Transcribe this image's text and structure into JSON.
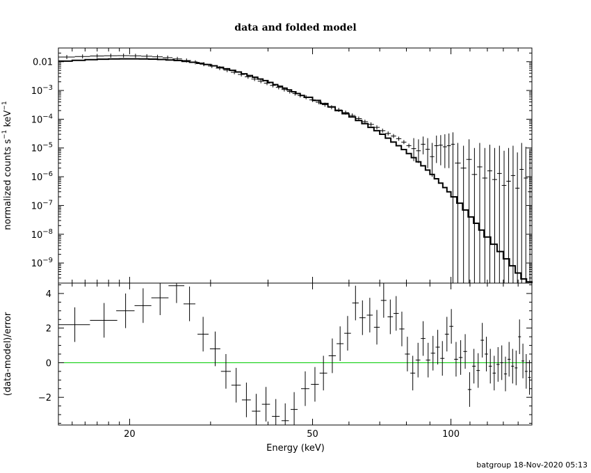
{
  "chart_data": [
    {
      "type": "line",
      "title": "data and folded model",
      "ylabel": "normalized counts s^-1 keV^-1",
      "xscale": "log",
      "yscale": "log",
      "xlim": [
        14,
        150
      ],
      "ylim": [
        2e-10,
        0.03
      ],
      "yticks": [
        {
          "value": 0.01,
          "label": "0.01"
        },
        {
          "value": 0.001,
          "base": "10",
          "exp": "−3"
        },
        {
          "value": 0.0001,
          "base": "10",
          "exp": "−4"
        },
        {
          "value": 1e-05,
          "base": "10",
          "exp": "−5"
        },
        {
          "value": 1e-06,
          "base": "10",
          "exp": "−6"
        },
        {
          "value": 1e-07,
          "base": "10",
          "exp": "−7"
        },
        {
          "value": 1e-08,
          "base": "10",
          "exp": "−8"
        },
        {
          "value": 1e-09,
          "base": "10",
          "exp": "−9"
        }
      ],
      "model_steps": [
        [
          14,
          0.0105
        ],
        [
          15,
          0.0112
        ],
        [
          16,
          0.0118
        ],
        [
          17,
          0.0122
        ],
        [
          18,
          0.0125
        ],
        [
          19,
          0.0126
        ],
        [
          20,
          0.0126
        ],
        [
          21,
          0.0125
        ],
        [
          22,
          0.0123
        ],
        [
          23,
          0.012
        ],
        [
          24,
          0.0115
        ],
        [
          25,
          0.011
        ],
        [
          26,
          0.0103
        ],
        [
          27,
          0.0096
        ],
        [
          28,
          0.0088
        ],
        [
          29,
          0.008
        ],
        [
          30,
          0.0072
        ],
        [
          31,
          0.0064
        ],
        [
          32,
          0.0057
        ],
        [
          33,
          0.005
        ],
        [
          34,
          0.0044
        ],
        [
          35,
          0.0038
        ],
        [
          36,
          0.0033
        ],
        [
          37,
          0.0029
        ],
        [
          38,
          0.0025
        ],
        [
          39,
          0.0022
        ],
        [
          40,
          0.0019
        ],
        [
          41,
          0.0016
        ],
        [
          42,
          0.0014
        ],
        [
          43,
          0.0012
        ],
        [
          44,
          0.00105
        ],
        [
          45,
          0.0009
        ],
        [
          46,
          0.00078
        ],
        [
          47,
          0.00067
        ],
        [
          48,
          0.00058
        ],
        [
          50,
          0.00045
        ],
        [
          52,
          0.00035
        ],
        [
          54,
          0.00027
        ],
        [
          56,
          0.0002
        ],
        [
          58,
          0.000155
        ],
        [
          60,
          0.00012
        ],
        [
          62,
          9e-05
        ],
        [
          64,
          7e-05
        ],
        [
          66,
          5.2e-05
        ],
        [
          68,
          4e-05
        ],
        [
          70,
          3e-05
        ],
        [
          72,
          2.2e-05
        ],
        [
          74,
          1.6e-05
        ],
        [
          76,
          1.2e-05
        ],
        [
          78,
          8.8e-06
        ],
        [
          80,
          6.4e-06
        ],
        [
          82,
          4.6e-06
        ],
        [
          84,
          3.3e-06
        ],
        [
          86,
          2.4e-06
        ],
        [
          88,
          1.7e-06
        ],
        [
          90,
          1.2e-06
        ],
        [
          92,
          8.5e-07
        ],
        [
          94,
          6e-07
        ],
        [
          96,
          4.2e-07
        ],
        [
          98,
          3e-07
        ],
        [
          100,
          2e-07
        ],
        [
          103,
          1.2e-07
        ],
        [
          106,
          7e-08
        ],
        [
          109,
          4e-08
        ],
        [
          112,
          2.4e-08
        ],
        [
          115,
          1.4e-08
        ],
        [
          118,
          8e-09
        ],
        [
          122,
          4.5e-09
        ],
        [
          126,
          2.5e-09
        ],
        [
          130,
          1.4e-09
        ],
        [
          134,
          8e-10
        ],
        [
          138,
          4.5e-10
        ],
        [
          142,
          2.8e-10
        ],
        [
          146,
          2.2e-10
        ],
        [
          150,
          2e-10
        ]
      ],
      "points": [
        {
          "x": 14.6,
          "y": 0.0145,
          "xerr": 0.6
        },
        {
          "x": 15.8,
          "y": 0.0152,
          "xerr": 0.6
        },
        {
          "x": 17.0,
          "y": 0.0158,
          "xerr": 0.6
        },
        {
          "x": 18.2,
          "y": 0.0162,
          "xerr": 0.6
        },
        {
          "x": 19.4,
          "y": 0.0163,
          "xerr": 0.6
        },
        {
          "x": 20.6,
          "y": 0.016,
          "xerr": 0.6
        },
        {
          "x": 21.8,
          "y": 0.0155,
          "xerr": 0.6
        },
        {
          "x": 23.0,
          "y": 0.0148,
          "xerr": 0.6
        },
        {
          "x": 24.2,
          "y": 0.0138,
          "xerr": 0.6
        },
        {
          "x": 25.4,
          "y": 0.0125,
          "xerr": 0.6
        },
        {
          "x": 26.6,
          "y": 0.011,
          "xerr": 0.6
        },
        {
          "x": 27.8,
          "y": 0.0095,
          "xerr": 0.6
        },
        {
          "x": 29.0,
          "y": 0.0082,
          "xerr": 0.6
        },
        {
          "x": 30.2,
          "y": 0.0071,
          "xerr": 0.6
        },
        {
          "x": 31.4,
          "y": 0.006,
          "xerr": 0.6
        },
        {
          "x": 32.6,
          "y": 0.0051,
          "xerr": 0.6
        },
        {
          "x": 33.8,
          "y": 0.0043,
          "xerr": 0.6
        },
        {
          "x": 35.0,
          "y": 0.0036,
          "xerr": 0.6
        },
        {
          "x": 36.2,
          "y": 0.003,
          "xerr": 0.6
        },
        {
          "x": 37.4,
          "y": 0.0025,
          "xerr": 0.6
        },
        {
          "x": 38.6,
          "y": 0.0021,
          "xerr": 0.6
        },
        {
          "x": 39.8,
          "y": 0.0018,
          "xerr": 0.6
        },
        {
          "x": 41.0,
          "y": 0.0015,
          "xerr": 0.6
        },
        {
          "x": 42.2,
          "y": 0.00128,
          "xerr": 0.6
        },
        {
          "x": 43.4,
          "y": 0.00108,
          "xerr": 0.6
        },
        {
          "x": 44.6,
          "y": 0.00092,
          "xerr": 0.6
        },
        {
          "x": 45.8,
          "y": 0.00078,
          "xerr": 0.6
        },
        {
          "x": 47.0,
          "y": 0.00067,
          "xerr": 0.6
        },
        {
          "x": 48.4,
          "y": 0.00058,
          "xerr": 0.7
        },
        {
          "x": 50.0,
          "y": 0.00047,
          "xerr": 0.8
        },
        {
          "x": 51.6,
          "y": 0.00039,
          "xerr": 0.8
        },
        {
          "x": 53.2,
          "y": 0.00032,
          "xerr": 0.8
        },
        {
          "x": 55.0,
          "y": 0.00026,
          "xerr": 0.9
        },
        {
          "x": 57.0,
          "y": 0.00021,
          "xerr": 1.0
        },
        {
          "x": 59.0,
          "y": 0.00017,
          "xerr": 1.0
        },
        {
          "x": 61.0,
          "y": 0.000135,
          "xerr": 1.0
        },
        {
          "x": 63.0,
          "y": 0.000105,
          "xerr": 1.0
        },
        {
          "x": 65.0,
          "y": 8.2e-05,
          "xerr": 1.0
        },
        {
          "x": 67.0,
          "y": 6.6e-05,
          "xerr": 1.0
        },
        {
          "x": 69.0,
          "y": 5.2e-05,
          "xerr": 1.0
        },
        {
          "x": 71.0,
          "y": 4e-05,
          "xerr": 1.0
        },
        {
          "x": 73.0,
          "y": 3.2e-05,
          "xerr": 1.0
        },
        {
          "x": 75.0,
          "y": 2.6e-05,
          "xerr": 1.0
        },
        {
          "x": 77.0,
          "y": 2.1e-05,
          "xerr": 1.0
        },
        {
          "x": 79.0,
          "y": 1.6e-05,
          "xerr": 1.0
        },
        {
          "x": 81.0,
          "y": 1.2e-05,
          "xerr": 1.0
        },
        {
          "x": 83.0,
          "y": 9.5e-06,
          "xerr": 1.0,
          "ylo": 3.5e-06,
          "yhi": 2.2e-05
        },
        {
          "x": 85.0,
          "y": 8e-06,
          "xerr": 1.0,
          "ylo": 3e-06,
          "yhi": 2e-05
        },
        {
          "x": 87.0,
          "y": 1.35e-05,
          "xerr": 1.0,
          "ylo": 6e-06,
          "yhi": 2.5e-05
        },
        {
          "x": 89.0,
          "y": 9e-06,
          "xerr": 1.0,
          "ylo": 2e-06,
          "yhi": 2.2e-05
        },
        {
          "x": 91.0,
          "y": 5e-06,
          "xerr": 1.0,
          "ylo": 1e-06,
          "yhi": 1.5e-05
        },
        {
          "x": 93.0,
          "y": 1.2e-05,
          "xerr": 1.0,
          "ylo": 3e-06,
          "yhi": 2.7e-05
        },
        {
          "x": 95.0,
          "y": 1.25e-05,
          "xerr": 1.0,
          "ylo": 2.5e-06,
          "yhi": 2.8e-05
        },
        {
          "x": 97.0,
          "y": 1.1e-05,
          "xerr": 1.0,
          "ylo": 2e-06,
          "yhi": 3e-05
        },
        {
          "x": 99.0,
          "y": 1.2e-05,
          "xerr": 1.0,
          "ylo": 2e-06,
          "yhi": 3.2e-05
        },
        {
          "x": 101.0,
          "y": 1.35e-05,
          "xerr": 1.0,
          "ylo": 2e-10,
          "yhi": 3.5e-05
        },
        {
          "x": 103.5,
          "y": 3e-06,
          "xerr": 1.5,
          "ylo": 2e-10,
          "yhi": 1.5e-05
        },
        {
          "x": 106.5,
          "y": 2e-06,
          "xerr": 1.5,
          "ylo": 2e-10,
          "yhi": 1.2e-05
        },
        {
          "x": 109.5,
          "y": 4e-06,
          "xerr": 1.5,
          "ylo": 2e-10,
          "yhi": 2e-05
        },
        {
          "x": 112.5,
          "y": 1.2e-06,
          "xerr": 1.5,
          "ylo": 2e-10,
          "yhi": 1e-05
        },
        {
          "x": 115.5,
          "y": 2.2e-06,
          "xerr": 1.5,
          "ylo": 2e-10,
          "yhi": 1.5e-05
        },
        {
          "x": 118.5,
          "y": 9e-07,
          "xerr": 1.5,
          "ylo": 2e-10,
          "yhi": 1e-05
        },
        {
          "x": 121.5,
          "y": 1.6e-06,
          "xerr": 1.5,
          "ylo": 2e-10,
          "yhi": 1.3e-05
        },
        {
          "x": 124.5,
          "y": 8e-07,
          "xerr": 1.5,
          "ylo": 2e-10,
          "yhi": 1e-05
        },
        {
          "x": 127.5,
          "y": 1.3e-06,
          "xerr": 1.5,
          "ylo": 2e-10,
          "yhi": 1.2e-05
        },
        {
          "x": 130.5,
          "y": 5e-07,
          "xerr": 1.5,
          "ylo": 2e-10,
          "yhi": 8e-06
        },
        {
          "x": 133.5,
          "y": 7e-07,
          "xerr": 1.5,
          "ylo": 2e-10,
          "yhi": 1e-05
        },
        {
          "x": 136.5,
          "y": 1.1e-06,
          "xerr": 1.5,
          "ylo": 2e-10,
          "yhi": 1.2e-05
        },
        {
          "x": 139.5,
          "y": 4e-07,
          "xerr": 1.5,
          "ylo": 2e-10,
          "yhi": 7e-06
        },
        {
          "x": 142.5,
          "y": 1.8e-06,
          "xerr": 1.5,
          "ylo": 2e-10,
          "yhi": 1.5e-05
        },
        {
          "x": 145.5,
          "y": 9e-07,
          "xerr": 1.5,
          "ylo": 2e-10,
          "yhi": 1.1e-05
        },
        {
          "x": 148.5,
          "y": 3e-07,
          "xerr": 1.5,
          "ylo": 2e-10,
          "yhi": 8e-06
        }
      ]
    },
    {
      "type": "scatter",
      "xlabel": "Energy (keV)",
      "ylabel": "(data-model)/error",
      "xscale": "log",
      "xlim": [
        14,
        150
      ],
      "ylim": [
        -3.6,
        4.6
      ],
      "xticks": [
        20,
        50,
        100
      ],
      "yticks": [
        -2,
        0,
        2,
        4
      ],
      "zero_line_color": "#00cc00",
      "points": [
        {
          "x": 15.2,
          "y": 2.2,
          "xerr": 1.2,
          "yerr": 1.0
        },
        {
          "x": 17.6,
          "y": 2.45,
          "xerr": 1.2,
          "yerr": 1.0
        },
        {
          "x": 19.6,
          "y": 3.0,
          "xerr": 0.9,
          "yerr": 1.0
        },
        {
          "x": 21.4,
          "y": 3.3,
          "xerr": 0.9,
          "yerr": 1.0
        },
        {
          "x": 23.3,
          "y": 3.75,
          "xerr": 1.0,
          "yerr": 1.0
        },
        {
          "x": 25.3,
          "y": 4.45,
          "xerr": 1.0,
          "yerr": 1.0
        },
        {
          "x": 27.0,
          "y": 3.4,
          "xerr": 0.8,
          "yerr": 1.0
        },
        {
          "x": 28.9,
          "y": 1.65,
          "xerr": 0.8,
          "yerr": 1.0
        },
        {
          "x": 30.7,
          "y": 0.8,
          "xerr": 0.8,
          "yerr": 1.0
        },
        {
          "x": 32.4,
          "y": -0.5,
          "xerr": 0.8,
          "yerr": 1.0
        },
        {
          "x": 34.1,
          "y": -1.3,
          "xerr": 0.8,
          "yerr": 1.0
        },
        {
          "x": 35.9,
          "y": -2.15,
          "xerr": 0.8,
          "yerr": 1.0
        },
        {
          "x": 37.7,
          "y": -2.8,
          "xerr": 0.8,
          "yerr": 1.0
        },
        {
          "x": 39.6,
          "y": -2.4,
          "xerr": 0.8,
          "yerr": 1.0
        },
        {
          "x": 41.6,
          "y": -3.1,
          "xerr": 0.8,
          "yerr": 1.0
        },
        {
          "x": 43.6,
          "y": -3.35,
          "xerr": 0.8,
          "yerr": 1.0
        },
        {
          "x": 45.6,
          "y": -2.7,
          "xerr": 0.8,
          "yerr": 1.0
        },
        {
          "x": 48.2,
          "y": -1.5,
          "xerr": 1.0,
          "yerr": 1.0
        },
        {
          "x": 50.6,
          "y": -1.25,
          "xerr": 1.0,
          "yerr": 1.0
        },
        {
          "x": 52.8,
          "y": -0.6,
          "xerr": 1.0,
          "yerr": 1.0
        },
        {
          "x": 55.2,
          "y": 0.4,
          "xerr": 1.0,
          "yerr": 1.0
        },
        {
          "x": 57.4,
          "y": 1.1,
          "xerr": 1.0,
          "yerr": 1.0
        },
        {
          "x": 59.6,
          "y": 1.7,
          "xerr": 1.0,
          "yerr": 1.0
        },
        {
          "x": 62.0,
          "y": 3.45,
          "xerr": 1.0,
          "yerr": 1.0
        },
        {
          "x": 64.2,
          "y": 2.6,
          "xerr": 1.0,
          "yerr": 1.0
        },
        {
          "x": 66.6,
          "y": 2.75,
          "xerr": 1.0,
          "yerr": 1.0
        },
        {
          "x": 69.0,
          "y": 2.05,
          "xerr": 1.0,
          "yerr": 1.0
        },
        {
          "x": 71.4,
          "y": 3.6,
          "xerr": 1.0,
          "yerr": 1.0
        },
        {
          "x": 73.8,
          "y": 2.65,
          "xerr": 1.0,
          "yerr": 1.0
        },
        {
          "x": 76.0,
          "y": 2.85,
          "xerr": 1.0,
          "yerr": 1.0
        },
        {
          "x": 78.2,
          "y": 1.95,
          "xerr": 1.0,
          "yerr": 1.0
        },
        {
          "x": 80.4,
          "y": 0.5,
          "xerr": 1.0,
          "yerr": 1.0
        },
        {
          "x": 82.6,
          "y": -0.6,
          "xerr": 1.0,
          "yerr": 1.0
        },
        {
          "x": 84.8,
          "y": 0.15,
          "xerr": 1.0,
          "yerr": 1.0
        },
        {
          "x": 87.0,
          "y": 1.4,
          "xerr": 1.0,
          "yerr": 1.0
        },
        {
          "x": 89.2,
          "y": 0.15,
          "xerr": 1.0,
          "yerr": 1.0
        },
        {
          "x": 91.4,
          "y": 0.55,
          "xerr": 1.0,
          "yerr": 1.0
        },
        {
          "x": 93.6,
          "y": 0.9,
          "xerr": 1.0,
          "yerr": 1.0
        },
        {
          "x": 95.8,
          "y": 0.25,
          "xerr": 1.0,
          "yerr": 1.0
        },
        {
          "x": 98.0,
          "y": 1.65,
          "xerr": 1.0,
          "yerr": 1.0
        },
        {
          "x": 100.2,
          "y": 2.1,
          "xerr": 1.0,
          "yerr": 1.0
        },
        {
          "x": 102.6,
          "y": 0.2,
          "xerr": 1.0,
          "yerr": 1.0
        },
        {
          "x": 105.0,
          "y": 0.3,
          "xerr": 1.0,
          "yerr": 1.0
        },
        {
          "x": 107.4,
          "y": 0.65,
          "xerr": 1.0,
          "yerr": 1.0
        },
        {
          "x": 109.8,
          "y": -1.55,
          "xerr": 1.0,
          "yerr": 1.0
        },
        {
          "x": 112.2,
          "y": -0.2,
          "xerr": 1.0,
          "yerr": 1.0
        },
        {
          "x": 114.6,
          "y": -0.45,
          "xerr": 1.0,
          "yerr": 1.0
        },
        {
          "x": 117.0,
          "y": 1.3,
          "xerr": 1.0,
          "yerr": 1.0
        },
        {
          "x": 119.4,
          "y": 0.5,
          "xerr": 1.0,
          "yerr": 1.0
        },
        {
          "x": 121.8,
          "y": -0.2,
          "xerr": 1.0,
          "yerr": 1.0
        },
        {
          "x": 124.2,
          "y": -0.6,
          "xerr": 1.0,
          "yerr": 1.0
        },
        {
          "x": 126.6,
          "y": -0.1,
          "xerr": 1.0,
          "yerr": 1.0
        },
        {
          "x": 129.0,
          "y": 0.0,
          "xerr": 1.0,
          "yerr": 1.0
        },
        {
          "x": 131.4,
          "y": -0.65,
          "xerr": 1.0,
          "yerr": 1.0
        },
        {
          "x": 133.8,
          "y": 0.2,
          "xerr": 1.0,
          "yerr": 1.0
        },
        {
          "x": 136.2,
          "y": -0.2,
          "xerr": 1.0,
          "yerr": 1.0
        },
        {
          "x": 138.6,
          "y": -0.3,
          "xerr": 1.0,
          "yerr": 1.0
        },
        {
          "x": 141.0,
          "y": 1.5,
          "xerr": 1.0,
          "yerr": 1.0
        },
        {
          "x": 143.4,
          "y": 0.1,
          "xerr": 1.0,
          "yerr": 1.0
        },
        {
          "x": 145.8,
          "y": -0.5,
          "xerr": 1.0,
          "yerr": 1.0
        },
        {
          "x": 148.2,
          "y": -0.85,
          "xerr": 1.0,
          "yerr": 1.0
        }
      ]
    }
  ],
  "footer": "batgroup 18-Nov-2020 05:13"
}
